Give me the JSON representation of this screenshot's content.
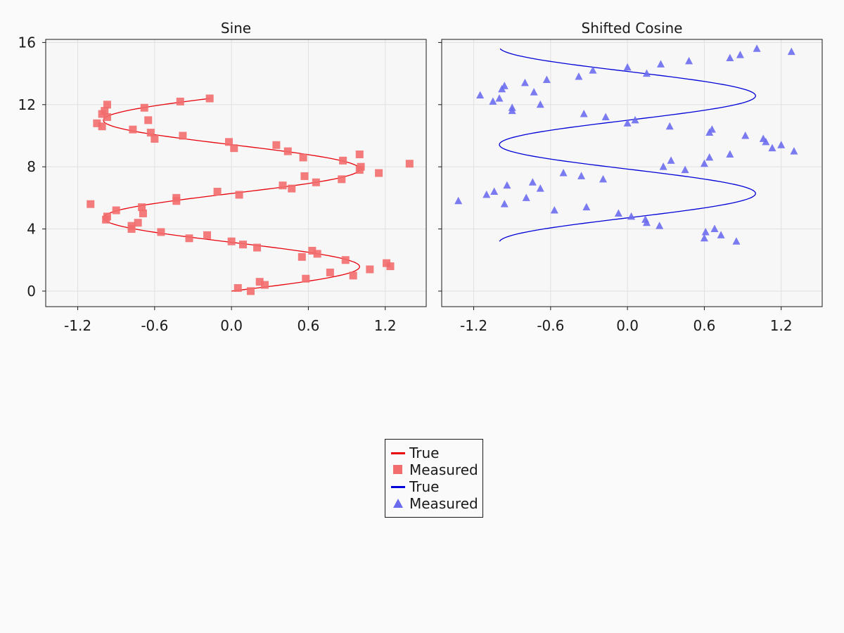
{
  "chart_data": [
    {
      "type": "scatter",
      "title": "Sine",
      "xlabel": "",
      "ylabel": "",
      "xlim": [
        -1.45,
        1.52
      ],
      "ylim": [
        -1.0,
        16.2
      ],
      "xticks": [
        -1.2,
        -0.6,
        0.0,
        0.6,
        1.2
      ],
      "yticks": [
        0,
        4,
        8,
        12,
        16
      ],
      "xtick_labels": [
        "-1.2",
        "-0.6",
        "0.0",
        "0.6",
        "1.2"
      ],
      "ytick_labels": [
        "0",
        "4",
        "8",
        "12",
        "16"
      ],
      "grid": true,
      "series": [
        {
          "name": "True",
          "kind": "line",
          "color": "#e8000b",
          "func": "sin",
          "y_range": [
            0,
            12.4
          ]
        },
        {
          "name": "Measured",
          "kind": "scatter",
          "marker": "square",
          "color": "#f26d6d",
          "points": [
            [
              0.05,
              0.2
            ],
            [
              0.15,
              0.0
            ],
            [
              0.22,
              0.6
            ],
            [
              0.26,
              0.4
            ],
            [
              0.58,
              0.8
            ],
            [
              0.77,
              1.2
            ],
            [
              0.95,
              1.0
            ],
            [
              1.08,
              1.4
            ],
            [
              1.24,
              1.6
            ],
            [
              1.21,
              1.8
            ],
            [
              0.89,
              2.0
            ],
            [
              0.55,
              2.2
            ],
            [
              0.67,
              2.4
            ],
            [
              0.63,
              2.6
            ],
            [
              0.2,
              2.8
            ],
            [
              0.09,
              3.0
            ],
            [
              0.0,
              3.2
            ],
            [
              -0.19,
              3.6
            ],
            [
              -0.33,
              3.4
            ],
            [
              -0.55,
              3.8
            ],
            [
              -0.78,
              4.0
            ],
            [
              -0.78,
              4.2
            ],
            [
              -0.73,
              4.4
            ],
            [
              -0.98,
              4.6
            ],
            [
              -0.97,
              4.8
            ],
            [
              -0.69,
              5.0
            ],
            [
              -0.9,
              5.2
            ],
            [
              -0.7,
              5.4
            ],
            [
              -1.1,
              5.6
            ],
            [
              -0.43,
              5.8
            ],
            [
              -0.43,
              6.0
            ],
            [
              0.06,
              6.2
            ],
            [
              -0.11,
              6.4
            ],
            [
              0.47,
              6.6
            ],
            [
              0.4,
              6.8
            ],
            [
              0.66,
              7.0
            ],
            [
              0.86,
              7.2
            ],
            [
              0.57,
              7.4
            ],
            [
              1.15,
              7.6
            ],
            [
              1.0,
              7.8
            ],
            [
              1.01,
              8.0
            ],
            [
              1.39,
              8.2
            ],
            [
              0.87,
              8.4
            ],
            [
              0.56,
              8.6
            ],
            [
              1.0,
              8.8
            ],
            [
              0.44,
              9.0
            ],
            [
              0.02,
              9.2
            ],
            [
              0.35,
              9.4
            ],
            [
              -0.02,
              9.6
            ],
            [
              -0.6,
              9.8
            ],
            [
              -0.38,
              10.0
            ],
            [
              -0.63,
              10.2
            ],
            [
              -0.77,
              10.4
            ],
            [
              -1.01,
              10.6
            ],
            [
              -1.05,
              10.8
            ],
            [
              -0.65,
              11.0
            ],
            [
              -0.97,
              11.2
            ],
            [
              -1.01,
              11.4
            ],
            [
              -0.99,
              11.6
            ],
            [
              -0.68,
              11.8
            ],
            [
              -0.97,
              12.0
            ],
            [
              -0.4,
              12.2
            ],
            [
              -0.17,
              12.4
            ]
          ]
        }
      ]
    },
    {
      "type": "scatter",
      "title": "Shifted Cosine",
      "xlabel": "",
      "ylabel": "",
      "xlim": [
        -1.45,
        1.52
      ],
      "ylim": [
        -1.0,
        16.2
      ],
      "xticks": [
        -1.2,
        -0.6,
        0.0,
        0.6,
        1.2
      ],
      "yticks": [
        0,
        4,
        8,
        12,
        16
      ],
      "xtick_labels": [
        "-1.2",
        "-0.6",
        "0.0",
        "0.6",
        "1.2"
      ],
      "grid": true,
      "series": [
        {
          "name": "True",
          "kind": "line",
          "color": "#0000d8",
          "func": "cos_shift",
          "y_range": [
            3.2,
            15.6
          ]
        },
        {
          "name": "Measured",
          "kind": "scatter",
          "marker": "triangle",
          "color": "#6b6bef",
          "points": [
            [
              0.85,
              3.2
            ],
            [
              0.6,
              3.4
            ],
            [
              0.73,
              3.6
            ],
            [
              0.61,
              3.8
            ],
            [
              0.68,
              4.0
            ],
            [
              0.25,
              4.2
            ],
            [
              0.15,
              4.4
            ],
            [
              0.14,
              4.6
            ],
            [
              0.03,
              4.8
            ],
            [
              -0.07,
              5.0
            ],
            [
              -0.57,
              5.2
            ],
            [
              -0.32,
              5.4
            ],
            [
              -0.96,
              5.6
            ],
            [
              -1.32,
              5.8
            ],
            [
              -0.79,
              6.0
            ],
            [
              -1.1,
              6.2
            ],
            [
              -1.04,
              6.4
            ],
            [
              -0.68,
              6.6
            ],
            [
              -0.94,
              6.8
            ],
            [
              -0.74,
              7.0
            ],
            [
              -0.19,
              7.2
            ],
            [
              -0.36,
              7.4
            ],
            [
              -0.5,
              7.6
            ],
            [
              0.45,
              7.8
            ],
            [
              0.28,
              8.0
            ],
            [
              0.6,
              8.2
            ],
            [
              0.34,
              8.4
            ],
            [
              0.64,
              8.6
            ],
            [
              0.8,
              8.8
            ],
            [
              1.3,
              9.0
            ],
            [
              1.13,
              9.2
            ],
            [
              1.2,
              9.4
            ],
            [
              1.08,
              9.6
            ],
            [
              1.06,
              9.8
            ],
            [
              0.92,
              10.0
            ],
            [
              0.64,
              10.2
            ],
            [
              0.66,
              10.4
            ],
            [
              0.33,
              10.6
            ],
            [
              0.0,
              10.8
            ],
            [
              0.06,
              11.0
            ],
            [
              -0.17,
              11.2
            ],
            [
              -0.34,
              11.4
            ],
            [
              -0.9,
              11.6
            ],
            [
              -0.9,
              11.8
            ],
            [
              -0.68,
              12.0
            ],
            [
              -1.05,
              12.2
            ],
            [
              -1.0,
              12.4
            ],
            [
              -1.15,
              12.6
            ],
            [
              -0.73,
              12.8
            ],
            [
              -0.98,
              13.0
            ],
            [
              -0.96,
              13.2
            ],
            [
              -0.8,
              13.4
            ],
            [
              -0.63,
              13.6
            ],
            [
              -0.38,
              13.8
            ],
            [
              0.15,
              14.0
            ],
            [
              -0.27,
              14.2
            ],
            [
              0.0,
              14.4
            ],
            [
              0.26,
              14.6
            ],
            [
              0.48,
              14.8
            ],
            [
              0.8,
              15.0
            ],
            [
              0.88,
              15.2
            ],
            [
              1.28,
              15.4
            ],
            [
              1.01,
              15.6
            ]
          ]
        }
      ]
    }
  ],
  "legend": {
    "entries": [
      {
        "label": "True",
        "kind": "line",
        "color": "#e8000b"
      },
      {
        "label": "Measured",
        "kind": "square",
        "color": "#f26d6d"
      },
      {
        "label": "True",
        "kind": "line",
        "color": "#0000d8"
      },
      {
        "label": "Measured",
        "kind": "triangle",
        "color": "#6b6bef"
      }
    ]
  }
}
